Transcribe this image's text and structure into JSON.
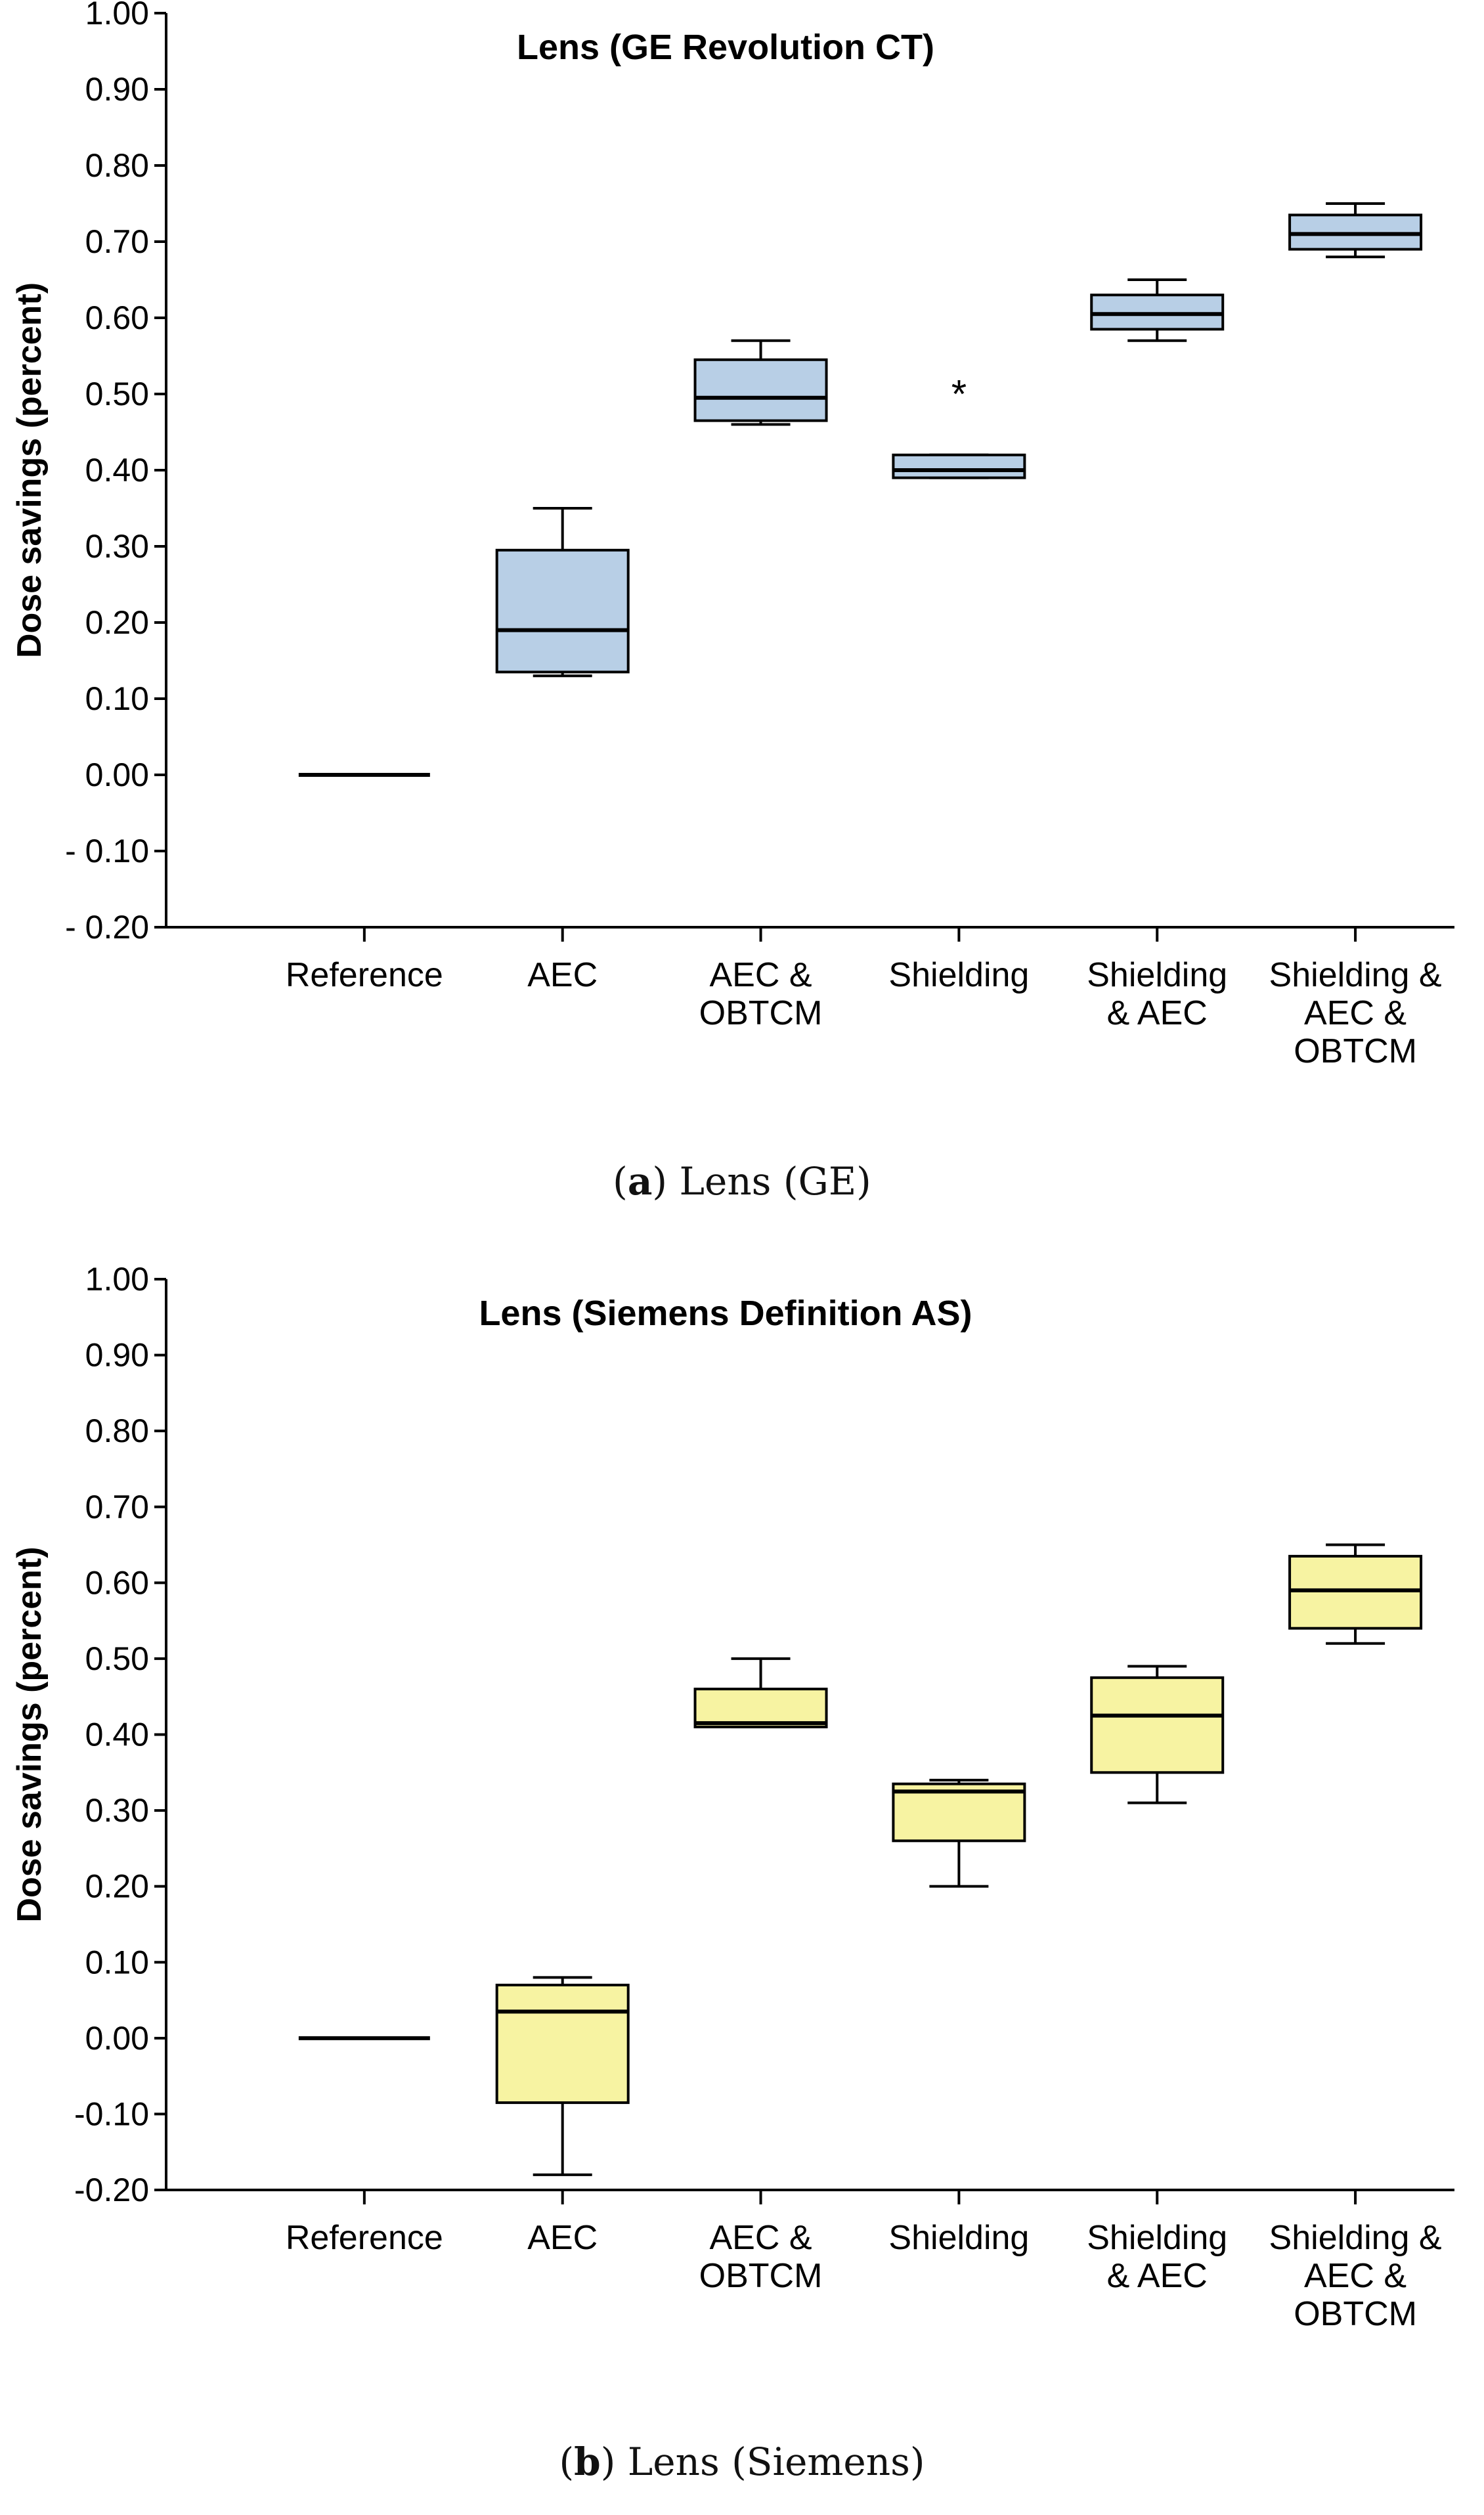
{
  "colors": {
    "panel_a_fill": "#b8cfe6",
    "panel_b_fill": "#f7f3a2",
    "line": "#000000"
  },
  "chart_data": [
    {
      "type": "boxplot",
      "title": "Lens (GE Revolution CT)",
      "ylabel": "Dose savings (percent)",
      "xlabel": "",
      "ylim": [
        -0.2,
        1.0
      ],
      "ytick_labels": [
        "- 0.20",
        "- 0.10",
        "0.00",
        "0.10",
        "0.20",
        "0.30",
        "0.40",
        "0.50",
        "0.60",
        "0.70",
        "0.80",
        "0.90",
        "1.00"
      ],
      "ytick_values": [
        -0.2,
        -0.1,
        0.0,
        0.1,
        0.2,
        0.3,
        0.4,
        0.5,
        0.6,
        0.7,
        0.8,
        0.9,
        1.0
      ],
      "categories": [
        [
          "Reference"
        ],
        [
          "AEC"
        ],
        [
          "AEC &",
          "OBTCM"
        ],
        [
          "Shielding"
        ],
        [
          "Shielding",
          "& AEC"
        ],
        [
          "Shielding &",
          "AEC &",
          "OBTCM"
        ]
      ],
      "boxes": [
        {
          "min": 0.0,
          "q1": 0.0,
          "median": 0.0,
          "q3": 0.0,
          "max": 0.0,
          "outliers": []
        },
        {
          "min": 0.13,
          "q1": 0.135,
          "median": 0.19,
          "q3": 0.295,
          "max": 0.35,
          "outliers": []
        },
        {
          "min": 0.46,
          "q1": 0.465,
          "median": 0.495,
          "q3": 0.545,
          "max": 0.57,
          "outliers": []
        },
        {
          "min": 0.39,
          "q1": 0.39,
          "median": 0.4,
          "q3": 0.42,
          "max": 0.42,
          "outliers": [
            0.51
          ]
        },
        {
          "min": 0.57,
          "q1": 0.585,
          "median": 0.605,
          "q3": 0.63,
          "max": 0.65,
          "outliers": []
        },
        {
          "min": 0.68,
          "q1": 0.69,
          "median": 0.71,
          "q3": 0.735,
          "max": 0.75,
          "outliers": []
        }
      ],
      "caption_label": "a",
      "caption_text": "Lens (GE)"
    },
    {
      "type": "boxplot",
      "title": "Lens (Siemens Definition AS)",
      "ylabel": "Dose savings (percent)",
      "xlabel": "",
      "ylim": [
        -0.2,
        1.0
      ],
      "ytick_labels": [
        "-0.20",
        "-0.10",
        "0.00",
        "0.10",
        "0.20",
        "0.30",
        "0.40",
        "0.50",
        "0.60",
        "0.70",
        "0.80",
        "0.90",
        "1.00"
      ],
      "ytick_values": [
        -0.2,
        -0.1,
        0.0,
        0.1,
        0.2,
        0.3,
        0.4,
        0.5,
        0.6,
        0.7,
        0.8,
        0.9,
        1.0
      ],
      "categories": [
        [
          "Reference"
        ],
        [
          "AEC"
        ],
        [
          "AEC &",
          "OBTCM"
        ],
        [
          "Shielding"
        ],
        [
          "Shielding",
          "& AEC"
        ],
        [
          "Shielding &",
          "AEC &",
          "OBTCM"
        ]
      ],
      "boxes": [
        {
          "min": 0.0,
          "q1": 0.0,
          "median": 0.0,
          "q3": 0.0,
          "max": 0.0,
          "outliers": []
        },
        {
          "min": -0.18,
          "q1": -0.085,
          "median": 0.035,
          "q3": 0.07,
          "max": 0.08,
          "outliers": []
        },
        {
          "min": 0.41,
          "q1": 0.41,
          "median": 0.415,
          "q3": 0.46,
          "max": 0.5,
          "outliers": []
        },
        {
          "min": 0.2,
          "q1": 0.26,
          "median": 0.325,
          "q3": 0.335,
          "max": 0.34,
          "outliers": []
        },
        {
          "min": 0.31,
          "q1": 0.35,
          "median": 0.425,
          "q3": 0.475,
          "max": 0.49,
          "outliers": []
        },
        {
          "min": 0.52,
          "q1": 0.54,
          "median": 0.59,
          "q3": 0.635,
          "max": 0.65,
          "outliers": []
        }
      ],
      "caption_label": "b",
      "caption_text": "Lens (Siemens)"
    }
  ]
}
